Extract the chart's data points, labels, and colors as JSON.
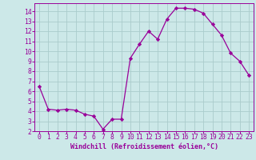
{
  "x": [
    0,
    1,
    2,
    3,
    4,
    5,
    6,
    7,
    8,
    9,
    10,
    11,
    12,
    13,
    14,
    15,
    16,
    17,
    18,
    19,
    20,
    21,
    22,
    23
  ],
  "y": [
    6.5,
    4.2,
    4.1,
    4.2,
    4.1,
    3.7,
    3.5,
    2.2,
    3.2,
    3.2,
    9.3,
    10.7,
    12.0,
    11.2,
    13.2,
    14.3,
    14.3,
    14.2,
    13.8,
    12.7,
    11.6,
    9.8,
    9.0,
    7.6
  ],
  "line_color": "#990099",
  "marker": "D",
  "marker_size": 2.2,
  "bg_color": "#cce8e8",
  "grid_color": "#aacccc",
  "xlabel": "Windchill (Refroidissement éolien,°C)",
  "ylabel": "",
  "xlim": [
    -0.5,
    23.5
  ],
  "ylim": [
    2,
    14.8
  ],
  "yticks": [
    2,
    3,
    4,
    5,
    6,
    7,
    8,
    9,
    10,
    11,
    12,
    13,
    14
  ],
  "xticks": [
    0,
    1,
    2,
    3,
    4,
    5,
    6,
    7,
    8,
    9,
    10,
    11,
    12,
    13,
    14,
    15,
    16,
    17,
    18,
    19,
    20,
    21,
    22,
    23
  ],
  "label_color": "#990099",
  "tick_color": "#990099",
  "spine_color": "#990099",
  "font_size": 5.8
}
